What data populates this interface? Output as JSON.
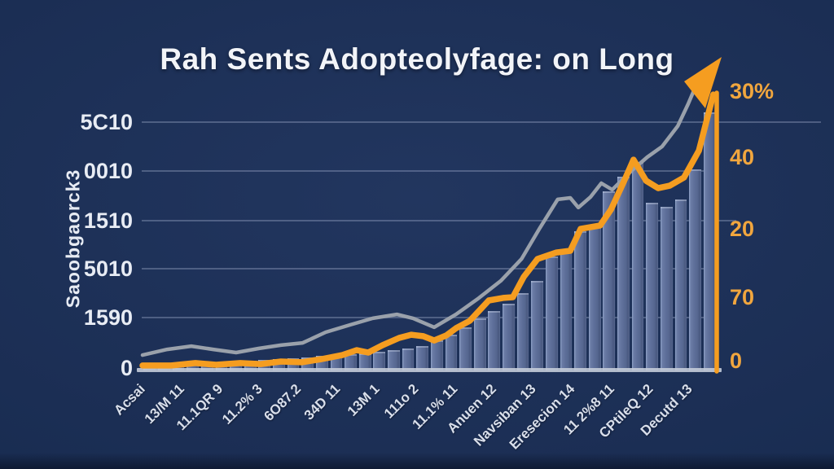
{
  "title": "Rah Sents Adopteolyfage: on Long",
  "chart_data": {
    "type": "bar",
    "subtype": "combo-bar-with-two-lines",
    "title": "Rah Sents Adopteolyfage: on Long",
    "note_text_is_garbled": true,
    "y_axis_left": {
      "title": "Saoobgaorck3",
      "ticks": [
        "5C10",
        "0010",
        "1510",
        "5010",
        "1590",
        "0"
      ]
    },
    "y_axis_right": {
      "ticks": [
        "30%",
        "40",
        "20",
        "70",
        "0"
      ]
    },
    "x_labels": [
      "Acsai",
      "13/M 11",
      "11.1QR 9",
      "11.2% 3",
      "6O87.2",
      "34D 11",
      "13M 1",
      "111o 2",
      "11.1% 11",
      "Anuen 12",
      "Navsiban 13",
      "Eresecion 14",
      "11 2%8 11",
      "CPtileQ 12",
      "Decutd 13"
    ],
    "bars": {
      "name": "adoption-volume-bars",
      "unit": "percent-of-plot-height",
      "values": [
        2.0,
        2.2,
        2.4,
        2.7,
        3.0,
        3.3,
        3.6,
        4.0,
        4.3,
        4.6,
        5.0,
        5.4,
        5.8,
        6.2,
        6.6,
        7.0,
        7.6,
        8.2,
        9.0,
        10.0,
        12.0,
        14.5,
        17.5,
        21.0,
        24.0,
        27.0,
        31.0,
        36.0,
        46.0,
        48.0,
        56.0,
        58.0,
        72.0,
        78.0,
        84.0,
        67.5,
        66.0,
        69.0,
        81.0,
        104.0
      ]
    },
    "series": [
      {
        "name": "gray-trend-line",
        "color": "#9aa1ab",
        "unit": "percent-of-plot-x-and-y",
        "points": [
          [
            0,
            6.2
          ],
          [
            4.3,
            8.5
          ],
          [
            8.5,
            9.8
          ],
          [
            12.3,
            8.5
          ],
          [
            16.3,
            7.2
          ],
          [
            20.3,
            8.9
          ],
          [
            24.1,
            10.2
          ],
          [
            27.9,
            11.1
          ],
          [
            31.9,
            15.4
          ],
          [
            36.2,
            18.4
          ],
          [
            40.1,
            21.0
          ],
          [
            44.3,
            22.6
          ],
          [
            47.1,
            21.0
          ],
          [
            50.8,
            17.4
          ],
          [
            54.6,
            22.6
          ],
          [
            58.6,
            29.2
          ],
          [
            62.4,
            36.1
          ],
          [
            66.0,
            44.9
          ],
          [
            69.2,
            57.4
          ],
          [
            72.3,
            68.9
          ],
          [
            74.5,
            69.5
          ],
          [
            75.9,
            65.6
          ],
          [
            78.0,
            69.8
          ],
          [
            79.9,
            75.4
          ],
          [
            81.8,
            72.8
          ],
          [
            85.1,
            80.3
          ],
          [
            87.9,
            85.9
          ],
          [
            90.5,
            90.2
          ],
          [
            93.2,
            98.4
          ],
          [
            95.0,
            107.2
          ],
          [
            96.7,
            116.4
          ]
        ]
      },
      {
        "name": "orange-adoption-line",
        "color": "#f59d20",
        "unit": "percent-of-plot-x-and-y",
        "points": [
          [
            0,
            2.0
          ],
          [
            5.0,
            2.0
          ],
          [
            9.2,
            3.0
          ],
          [
            12.8,
            2.3
          ],
          [
            17.0,
            3.0
          ],
          [
            20.6,
            2.6
          ],
          [
            24.1,
            3.6
          ],
          [
            27.7,
            3.3
          ],
          [
            31.2,
            4.6
          ],
          [
            34.8,
            6.2
          ],
          [
            37.3,
            8.2
          ],
          [
            39.3,
            7.2
          ],
          [
            41.8,
            10.2
          ],
          [
            44.7,
            13.1
          ],
          [
            46.8,
            14.4
          ],
          [
            48.9,
            13.8
          ],
          [
            50.8,
            12.1
          ],
          [
            52.9,
            14.1
          ],
          [
            54.6,
            17.0
          ],
          [
            57.0,
            20.0
          ],
          [
            60.3,
            28.2
          ],
          [
            62.8,
            29.2
          ],
          [
            64.5,
            29.5
          ],
          [
            66.4,
            37.7
          ],
          [
            68.8,
            44.9
          ],
          [
            72.1,
            47.5
          ],
          [
            74.5,
            48.2
          ],
          [
            76.3,
            57.0
          ],
          [
            79.7,
            58.4
          ],
          [
            81.6,
            64.9
          ],
          [
            83.7,
            75.4
          ],
          [
            85.5,
            84.9
          ],
          [
            87.7,
            76.4
          ],
          [
            89.8,
            73.4
          ],
          [
            91.8,
            74.4
          ],
          [
            94.3,
            77.7
          ],
          [
            96.9,
            88.5
          ],
          [
            99.4,
            111.1
          ]
        ]
      }
    ],
    "annotations": {
      "arrow": "orange arrowhead pointing up-right at end of gray line, top right of plot"
    },
    "layout": {
      "grid": true,
      "gridline_rows": 5,
      "right_axis_line_color": "#f59d20",
      "plot_background": "dark navy"
    },
    "colors": {
      "background": "#1b2e54",
      "title": "#f2f4f8",
      "left_axis_text": "#e8ecf4",
      "right_axis_text": "#f1a63e",
      "bar_fill": "#5d6e99",
      "bar_highlight": "#91a4c9",
      "gray_line": "#9aa1ab",
      "orange_line": "#f59d20",
      "gridline": "rgba(173,186,214,0.34)",
      "baseline": "#c3cbd8"
    }
  }
}
